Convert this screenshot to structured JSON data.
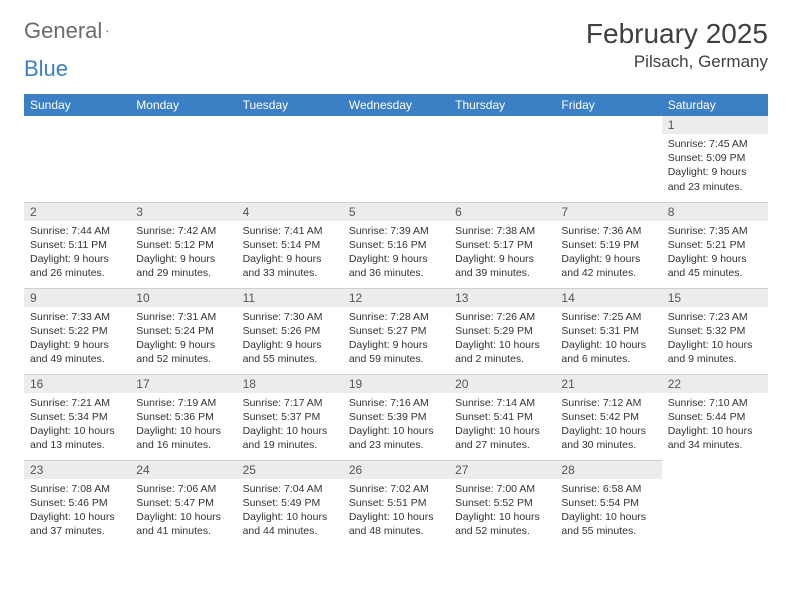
{
  "logo": {
    "word1": "General",
    "word2": "Blue"
  },
  "title": "February 2025",
  "subtitle": "Pilsach, Germany",
  "colors": {
    "header_bg": "#3b7fc4",
    "header_fg": "#ffffff",
    "daynum_bg": "#ececec",
    "text": "#333333",
    "rule": "#cfcfcf"
  },
  "weekdays": [
    "Sunday",
    "Monday",
    "Tuesday",
    "Wednesday",
    "Thursday",
    "Friday",
    "Saturday"
  ],
  "weeks": [
    [
      {
        "n": "",
        "sr": "",
        "ss": "",
        "dl": ""
      },
      {
        "n": "",
        "sr": "",
        "ss": "",
        "dl": ""
      },
      {
        "n": "",
        "sr": "",
        "ss": "",
        "dl": ""
      },
      {
        "n": "",
        "sr": "",
        "ss": "",
        "dl": ""
      },
      {
        "n": "",
        "sr": "",
        "ss": "",
        "dl": ""
      },
      {
        "n": "",
        "sr": "",
        "ss": "",
        "dl": ""
      },
      {
        "n": "1",
        "sr": "Sunrise: 7:45 AM",
        "ss": "Sunset: 5:09 PM",
        "dl": "Daylight: 9 hours and 23 minutes."
      }
    ],
    [
      {
        "n": "2",
        "sr": "Sunrise: 7:44 AM",
        "ss": "Sunset: 5:11 PM",
        "dl": "Daylight: 9 hours and 26 minutes."
      },
      {
        "n": "3",
        "sr": "Sunrise: 7:42 AM",
        "ss": "Sunset: 5:12 PM",
        "dl": "Daylight: 9 hours and 29 minutes."
      },
      {
        "n": "4",
        "sr": "Sunrise: 7:41 AM",
        "ss": "Sunset: 5:14 PM",
        "dl": "Daylight: 9 hours and 33 minutes."
      },
      {
        "n": "5",
        "sr": "Sunrise: 7:39 AM",
        "ss": "Sunset: 5:16 PM",
        "dl": "Daylight: 9 hours and 36 minutes."
      },
      {
        "n": "6",
        "sr": "Sunrise: 7:38 AM",
        "ss": "Sunset: 5:17 PM",
        "dl": "Daylight: 9 hours and 39 minutes."
      },
      {
        "n": "7",
        "sr": "Sunrise: 7:36 AM",
        "ss": "Sunset: 5:19 PM",
        "dl": "Daylight: 9 hours and 42 minutes."
      },
      {
        "n": "8",
        "sr": "Sunrise: 7:35 AM",
        "ss": "Sunset: 5:21 PM",
        "dl": "Daylight: 9 hours and 45 minutes."
      }
    ],
    [
      {
        "n": "9",
        "sr": "Sunrise: 7:33 AM",
        "ss": "Sunset: 5:22 PM",
        "dl": "Daylight: 9 hours and 49 minutes."
      },
      {
        "n": "10",
        "sr": "Sunrise: 7:31 AM",
        "ss": "Sunset: 5:24 PM",
        "dl": "Daylight: 9 hours and 52 minutes."
      },
      {
        "n": "11",
        "sr": "Sunrise: 7:30 AM",
        "ss": "Sunset: 5:26 PM",
        "dl": "Daylight: 9 hours and 55 minutes."
      },
      {
        "n": "12",
        "sr": "Sunrise: 7:28 AM",
        "ss": "Sunset: 5:27 PM",
        "dl": "Daylight: 9 hours and 59 minutes."
      },
      {
        "n": "13",
        "sr": "Sunrise: 7:26 AM",
        "ss": "Sunset: 5:29 PM",
        "dl": "Daylight: 10 hours and 2 minutes."
      },
      {
        "n": "14",
        "sr": "Sunrise: 7:25 AM",
        "ss": "Sunset: 5:31 PM",
        "dl": "Daylight: 10 hours and 6 minutes."
      },
      {
        "n": "15",
        "sr": "Sunrise: 7:23 AM",
        "ss": "Sunset: 5:32 PM",
        "dl": "Daylight: 10 hours and 9 minutes."
      }
    ],
    [
      {
        "n": "16",
        "sr": "Sunrise: 7:21 AM",
        "ss": "Sunset: 5:34 PM",
        "dl": "Daylight: 10 hours and 13 minutes."
      },
      {
        "n": "17",
        "sr": "Sunrise: 7:19 AM",
        "ss": "Sunset: 5:36 PM",
        "dl": "Daylight: 10 hours and 16 minutes."
      },
      {
        "n": "18",
        "sr": "Sunrise: 7:17 AM",
        "ss": "Sunset: 5:37 PM",
        "dl": "Daylight: 10 hours and 19 minutes."
      },
      {
        "n": "19",
        "sr": "Sunrise: 7:16 AM",
        "ss": "Sunset: 5:39 PM",
        "dl": "Daylight: 10 hours and 23 minutes."
      },
      {
        "n": "20",
        "sr": "Sunrise: 7:14 AM",
        "ss": "Sunset: 5:41 PM",
        "dl": "Daylight: 10 hours and 27 minutes."
      },
      {
        "n": "21",
        "sr": "Sunrise: 7:12 AM",
        "ss": "Sunset: 5:42 PM",
        "dl": "Daylight: 10 hours and 30 minutes."
      },
      {
        "n": "22",
        "sr": "Sunrise: 7:10 AM",
        "ss": "Sunset: 5:44 PM",
        "dl": "Daylight: 10 hours and 34 minutes."
      }
    ],
    [
      {
        "n": "23",
        "sr": "Sunrise: 7:08 AM",
        "ss": "Sunset: 5:46 PM",
        "dl": "Daylight: 10 hours and 37 minutes."
      },
      {
        "n": "24",
        "sr": "Sunrise: 7:06 AM",
        "ss": "Sunset: 5:47 PM",
        "dl": "Daylight: 10 hours and 41 minutes."
      },
      {
        "n": "25",
        "sr": "Sunrise: 7:04 AM",
        "ss": "Sunset: 5:49 PM",
        "dl": "Daylight: 10 hours and 44 minutes."
      },
      {
        "n": "26",
        "sr": "Sunrise: 7:02 AM",
        "ss": "Sunset: 5:51 PM",
        "dl": "Daylight: 10 hours and 48 minutes."
      },
      {
        "n": "27",
        "sr": "Sunrise: 7:00 AM",
        "ss": "Sunset: 5:52 PM",
        "dl": "Daylight: 10 hours and 52 minutes."
      },
      {
        "n": "28",
        "sr": "Sunrise: 6:58 AM",
        "ss": "Sunset: 5:54 PM",
        "dl": "Daylight: 10 hours and 55 minutes."
      },
      {
        "n": "",
        "sr": "",
        "ss": "",
        "dl": ""
      }
    ]
  ]
}
